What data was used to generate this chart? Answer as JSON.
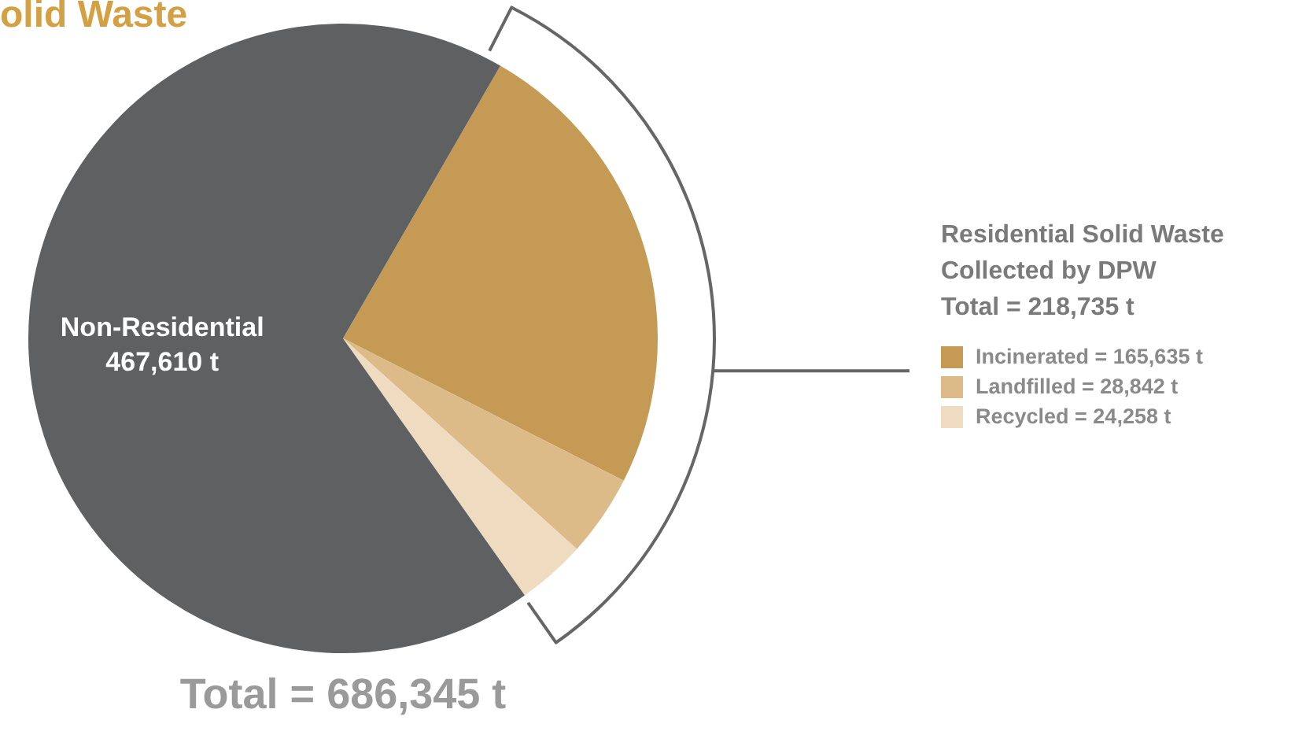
{
  "chart_data": {
    "type": "pie",
    "title": "olid Waste",
    "categories": [
      "Incinerated = 165,635 t",
      "Landfilled = 28,842 t",
      "Recycled = 24,258 t",
      "Non-Residential"
    ],
    "values": [
      165635,
      28842,
      24258,
      467610
    ],
    "colors": [
      "#c49a55",
      "#dcbb88",
      "#efdcc0",
      "#5f6062"
    ],
    "value_labels": [
      null,
      null,
      null,
      "467,610 t"
    ],
    "legend": "right",
    "legend_title": "Residential Solid Waste\nCollected by DPW\nTotal = 218,735 t",
    "annotations": [
      "Total = 686,345 t"
    ]
  }
}
